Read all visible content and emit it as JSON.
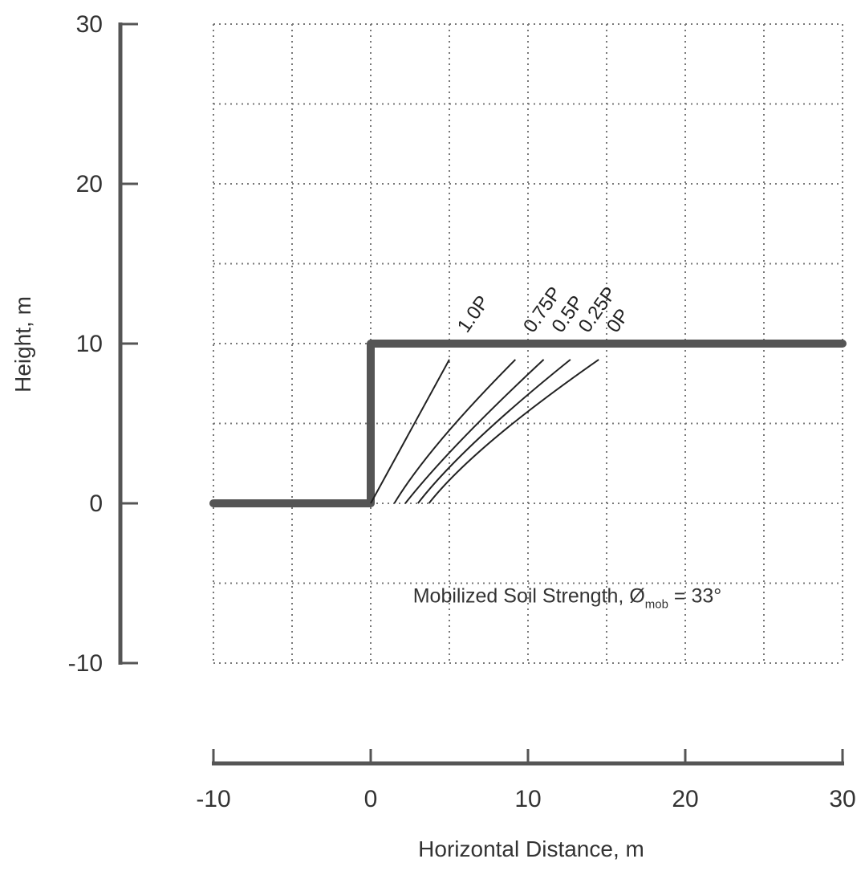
{
  "chart_data": {
    "type": "line",
    "xlabel": "Horizontal Distance, m",
    "ylabel": "Height, m",
    "xlim": [
      -10,
      30
    ],
    "ylim": [
      -10,
      30
    ],
    "x_ticks": [
      -10,
      0,
      10,
      20,
      30
    ],
    "y_ticks": [
      30,
      20,
      10,
      0,
      -10
    ],
    "grid": true,
    "grid_style": "dotted",
    "slope_profile": {
      "x": [
        -10,
        0,
        0,
        30
      ],
      "y": [
        0,
        0,
        10,
        10
      ]
    },
    "series": [
      {
        "name": "1.0P",
        "x": [
          0,
          5
        ],
        "y": [
          0,
          9
        ]
      },
      {
        "name": "0.75P",
        "x": [
          1.5,
          4.5,
          9.2
        ],
        "y": [
          0,
          4,
          9
        ]
      },
      {
        "name": "0.5P",
        "x": [
          2.2,
          5.8,
          11
        ],
        "y": [
          0,
          4,
          9
        ]
      },
      {
        "name": "0.25P",
        "x": [
          3,
          6.8,
          12.7
        ],
        "y": [
          0,
          4,
          9
        ]
      },
      {
        "name": "0P",
        "x": [
          3.7,
          7.8,
          14.5
        ],
        "y": [
          0,
          4,
          9
        ]
      }
    ],
    "annotation": {
      "text_before": "Mobilized Soil Strength, Ø",
      "subscript": "mob",
      "text_after": " = 33°",
      "x": 12.5,
      "y": -6.2
    },
    "colors": {
      "profile": "#555555",
      "curves": "#222222",
      "grid": "#777777",
      "axis": "#555555"
    }
  }
}
